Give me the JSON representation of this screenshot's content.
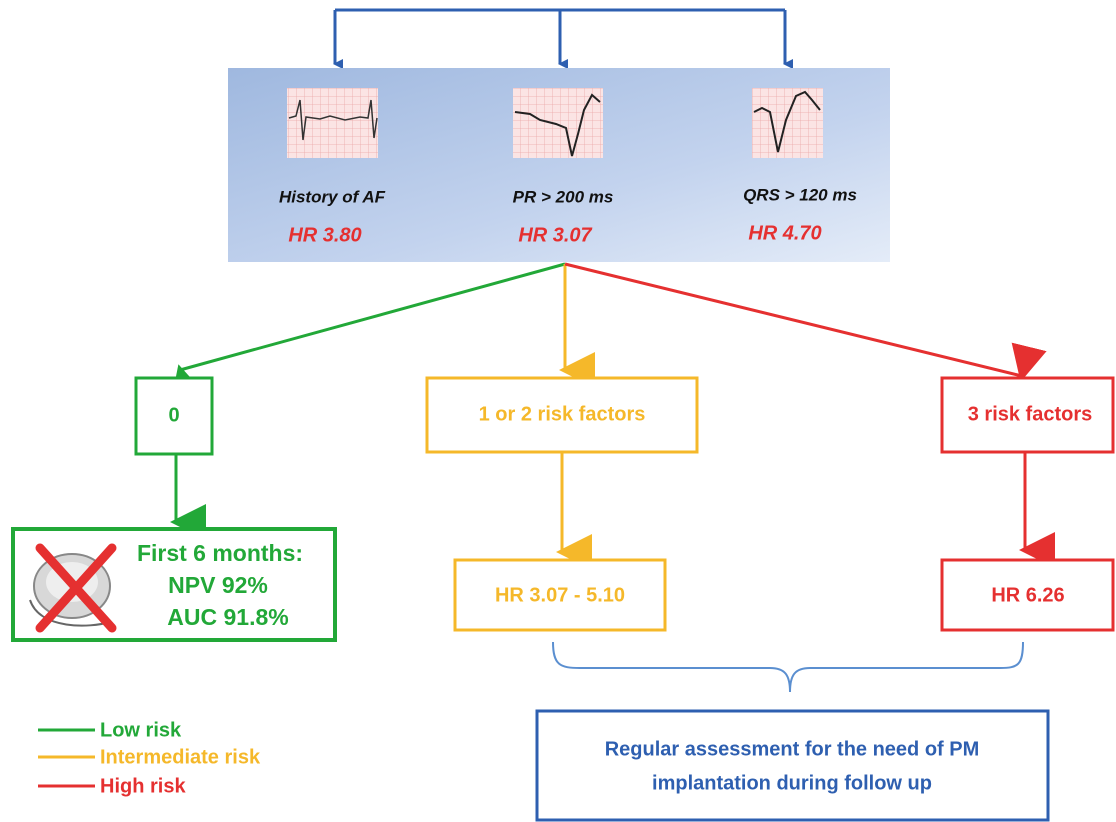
{
  "factors": [
    {
      "label": "History of AF",
      "hr": "HR 3.80"
    },
    {
      "label": "PR > 200 ms",
      "hr": "HR 3.07"
    },
    {
      "label": "QRS > 120 ms",
      "hr": "HR 4.70"
    }
  ],
  "groups": [
    {
      "label": "0"
    },
    {
      "label": "1 or 2 risk factors"
    },
    {
      "label": "3 risk factors"
    }
  ],
  "outcomes": {
    "low": [
      "First 6 months:",
      "NPV 92%",
      "AUC 91.8%"
    ],
    "intermediate": "HR 3.07 - 5.10",
    "high": "HR 6.26"
  },
  "recommendation": [
    "Regular assessment for the need of PM",
    "implantation during follow up"
  ],
  "legend": [
    "Low risk",
    "Intermediate risk",
    "High risk"
  ]
}
